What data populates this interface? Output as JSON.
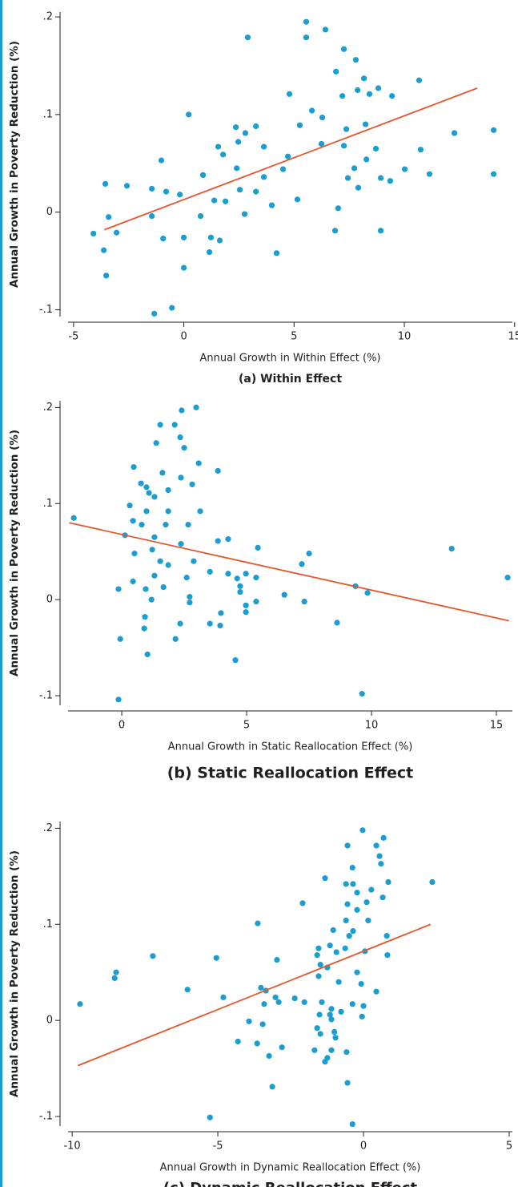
{
  "chart_data": [
    {
      "type": "scatter",
      "title": "(a) Within Effect",
      "xlabel": "Annual Growth in Within Effect (%)",
      "ylabel": "Annual Growth in Poverty Reduction (%)",
      "color": "#1a9dd0",
      "x": [
        5.55,
        5.55,
        6.42,
        2.9,
        7.26,
        7.8,
        10.67,
        6.9,
        8.17,
        8.82,
        7.88,
        7.19,
        8.42,
        9.44,
        5.81,
        4.79,
        5.26,
        6.28,
        7.37,
        8.24,
        0.22,
        2.36,
        3.27,
        2.79,
        3.63,
        1.56,
        2.47,
        8.71,
        10.74,
        12.27,
        14.05,
        14.05,
        11.14,
        10.02,
        8.28,
        7.73,
        7.44,
        7.26,
        6.24,
        4.72,
        4.5,
        3.63,
        1.78,
        2.4,
        3.27,
        2.54,
        1.38,
        0.87,
        1.89,
        0.76,
        -0.18,
        -0.8,
        -1.45,
        -1.02,
        -2.58,
        -3.56,
        -1.45,
        -0.94,
        0,
        1.23,
        1.16,
        1.63,
        2.76,
        3.99,
        5.15,
        4.21,
        6.86,
        8.93,
        7.0,
        -3.05,
        -3.41,
        -4.1,
        -3.63,
        -3.52,
        -1.34,
        -0.54,
        0,
        9.36,
        8.93,
        7.91
      ],
      "values": [
        0.195,
        0.179,
        0.187,
        0.179,
        0.167,
        0.156,
        0.135,
        0.144,
        0.137,
        0.127,
        0.125,
        0.119,
        0.121,
        0.119,
        0.104,
        0.121,
        0.089,
        0.097,
        0.085,
        0.09,
        0.1,
        0.087,
        0.088,
        0.081,
        0.067,
        0.067,
        0.072,
        0.065,
        0.064,
        0.081,
        0.084,
        0.039,
        0.039,
        0.044,
        0.054,
        0.045,
        0.035,
        0.068,
        0.07,
        0.057,
        0.044,
        0.036,
        0.059,
        0.045,
        0.021,
        0.023,
        0.012,
        0.038,
        0.011,
        -0.004,
        0.018,
        0.021,
        0.024,
        0.053,
        0.027,
        0.029,
        -0.004,
        -0.027,
        -0.026,
        -0.026,
        -0.041,
        -0.029,
        -0.002,
        0.007,
        0.013,
        -0.042,
        -0.019,
        -0.019,
        0.004,
        -0.021,
        -0.005,
        -0.022,
        -0.039,
        -0.065,
        -0.104,
        -0.098,
        -0.057,
        0.032,
        0.035,
        0.025
      ],
      "fit": {
        "x": [
          -3.6,
          13.3
        ],
        "values": [
          -0.018,
          0.127
        ],
        "color": "#e4572e"
      },
      "xlim": [
        -5.25,
        14.9
      ],
      "ylim": [
        -0.107,
        0.205
      ],
      "xticks": [
        -5,
        0,
        5,
        10,
        15
      ],
      "yticks": [
        {
          "value": -0.1,
          "label": "-.1"
        },
        0,
        {
          "value": 0.1,
          "label": ".1"
        },
        {
          "value": 0.2,
          "label": ".2"
        }
      ]
    },
    {
      "type": "scatter",
      "title": "(b) Static Reallocation Effect",
      "xlabel": "Annual Growth in Static Reallocation Effect (%)",
      "ylabel": "Annual Growth in Poverty Reduction (%)",
      "color": "#1a9dd0",
      "x": [
        2.98,
        2.4,
        1.54,
        2.12,
        2.34,
        1.38,
        2.5,
        3.08,
        0.48,
        3.85,
        1.63,
        2.37,
        0.77,
        2.82,
        0.99,
        1.86,
        0.32,
        1.09,
        1.31,
        0.99,
        1.86,
        3.14,
        0.45,
        1.76,
        2.66,
        0.8,
        0.13,
        -1.92,
        1.31,
        4.26,
        3.85,
        2.37,
        1.22,
        5.45,
        13.21,
        9.84,
        0.51,
        1.54,
        2.88,
        7.5,
        7.21,
        1.86,
        4.26,
        4.97,
        4.62,
        3.53,
        1.31,
        0.45,
        2.6,
        5.38,
        15.45,
        9.36,
        4.74,
        1.67,
        -0.13,
        0.96,
        4.74,
        2.72,
        6.51,
        1.19,
        5.38,
        7.31,
        4.97,
        2.72,
        4.97,
        0.93,
        3.97,
        3.53,
        2.34,
        8.62,
        0.9,
        2.15,
        -0.06,
        4.55,
        1.03,
        9.62,
        -0.13,
        3.94
      ],
      "values": [
        0.2,
        0.197,
        0.182,
        0.182,
        0.169,
        0.163,
        0.158,
        0.142,
        0.138,
        0.134,
        0.132,
        0.127,
        0.121,
        0.12,
        0.117,
        0.114,
        0.098,
        0.111,
        0.107,
        0.092,
        0.092,
        0.092,
        0.082,
        0.078,
        0.078,
        0.078,
        0.067,
        0.085,
        0.065,
        0.063,
        0.061,
        0.058,
        0.052,
        0.054,
        0.053,
        0.007,
        0.048,
        0.04,
        0.04,
        0.048,
        0.037,
        0.036,
        0.027,
        0.027,
        0.022,
        0.029,
        0.025,
        0.019,
        0.023,
        0.023,
        0.023,
        0.014,
        0.014,
        0.013,
        0.011,
        0.011,
        0.008,
        0.003,
        0.005,
        0,
        -0.002,
        -0.002,
        -0.006,
        -0.003,
        -0.013,
        -0.018,
        -0.014,
        -0.025,
        -0.025,
        -0.024,
        -0.03,
        -0.041,
        -0.041,
        -0.063,
        -0.057,
        -0.098,
        -0.104,
        -0.027
      ],
      "fit": {
        "x": [
          -2.1,
          15.5
        ],
        "values": [
          0.08,
          -0.022
        ],
        "color": "#e4572e"
      },
      "xlim": [
        -2.15,
        15.64
      ],
      "ylim": [
        -0.11,
        0.207
      ],
      "xticks": [
        0,
        5,
        10,
        15
      ],
      "yticks": [
        {
          "value": -0.1,
          "label": "-.1"
        },
        0,
        {
          "value": 0.1,
          "label": ".1"
        },
        {
          "value": 0.2,
          "label": ".2"
        }
      ]
    },
    {
      "type": "scatter",
      "title": "(c) Dynamic Reallocation Effect",
      "xlabel": "Annual Growth in Dynamic Reallocation Effect (%)",
      "ylabel": "Annual Growth in Poverty Reduction (%)",
      "color": "#1a9dd0",
      "x": [
        -0.03,
        0.69,
        0.44,
        -0.55,
        0.55,
        0.6,
        -0.38,
        -1.32,
        -0.6,
        -0.36,
        0.85,
        2.36,
        0.27,
        -0.22,
        0.66,
        0.11,
        -0.55,
        -2.09,
        -0.22,
        0.16,
        -3.63,
        -0.6,
        -1.04,
        -0.36,
        -0.49,
        0.8,
        -1.15,
        -1.54,
        -0.63,
        0.82,
        0.05,
        -0.93,
        -1.59,
        -7.23,
        -2.97,
        -5.05,
        -1.48,
        -1.24,
        -1.54,
        -8.49,
        -8.54,
        -0.22,
        -0.85,
        -0.08,
        -3.52,
        -3.35,
        -4.81,
        -3.02,
        -2.91,
        -2.36,
        -2.03,
        -1.43,
        -0.38,
        0,
        0.44,
        -9.73,
        -6.04,
        -3.41,
        -1.1,
        -1.51,
        -1.15,
        -0.77,
        -0.05,
        -1.1,
        -3.93,
        -3.46,
        -1.59,
        -1.48,
        -1.0,
        -0.96,
        -4.31,
        -3.65,
        -2.8,
        -1.68,
        -1.1,
        -3.24,
        -1.24,
        -0.58,
        -1.32,
        -0.55,
        -3.13,
        -5.27,
        -0.38
      ],
      "values": [
        0.198,
        0.19,
        0.182,
        0.182,
        0.171,
        0.163,
        0.159,
        0.148,
        0.142,
        0.142,
        0.144,
        0.144,
        0.136,
        0.133,
        0.128,
        0.123,
        0.121,
        0.122,
        0.115,
        0.104,
        0.101,
        0.104,
        0.094,
        0.093,
        0.088,
        0.088,
        0.078,
        0.075,
        0.075,
        0.068,
        0.072,
        0.071,
        0.068,
        0.067,
        0.063,
        0.065,
        0.058,
        0.055,
        0.046,
        0.05,
        0.044,
        0.05,
        0.04,
        0.038,
        0.034,
        0.031,
        0.024,
        0.024,
        0.019,
        0.023,
        0.019,
        0.019,
        0.017,
        0.015,
        0.03,
        0.017,
        0.032,
        0.017,
        0.012,
        0.006,
        0.006,
        0.009,
        0.004,
        0.001,
        -0.001,
        -0.004,
        -0.008,
        -0.014,
        -0.012,
        -0.018,
        -0.022,
        -0.024,
        -0.028,
        -0.031,
        -0.031,
        -0.037,
        -0.039,
        -0.033,
        -0.043,
        -0.065,
        -0.069,
        -0.101,
        -0.108
      ],
      "fit": {
        "x": [
          -9.8,
          2.3
        ],
        "values": [
          -0.047,
          0.1
        ],
        "color": "#e4572e"
      },
      "xlim": [
        -10.14,
        5.11
      ],
      "ylim": [
        -0.11,
        0.207
      ],
      "xticks": [
        -10,
        -5,
        0,
        5
      ],
      "yticks": [
        {
          "value": -0.1,
          "label": "-.1"
        },
        0,
        {
          "value": 0.1,
          "label": ".1"
        },
        {
          "value": 0.2,
          "label": ".2"
        }
      ]
    }
  ]
}
